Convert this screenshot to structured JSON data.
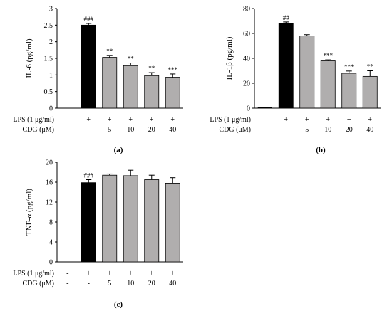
{
  "chart_data": [
    {
      "type": "bar",
      "panel_label": "(a)",
      "ylabel": "IL-6 (pg/ml)",
      "ylim": [
        0,
        3
      ],
      "yticks": [
        "0",
        "0.5",
        "1",
        "1.5",
        "2",
        "2.5",
        "3"
      ],
      "treatment_rows": [
        {
          "label": "LPS  (1 μg/ml)",
          "values": [
            "-",
            "+",
            "+",
            "+",
            "+",
            "+"
          ]
        },
        {
          "label": "CDG (μM)",
          "values": [
            "-",
            "-",
            "5",
            "10",
            "20",
            "40"
          ]
        }
      ],
      "values": [
        0.0,
        2.5,
        1.53,
        1.28,
        0.98,
        0.93
      ],
      "errors": [
        0.0,
        0.05,
        0.06,
        0.08,
        0.09,
        0.1
      ],
      "significance": [
        "",
        "###",
        "**",
        "**",
        "**",
        "***"
      ],
      "bar_colors": [
        "#000000",
        "#000000",
        "#b0aeae",
        "#b0aeae",
        "#b0aeae",
        "#b0aeae"
      ]
    },
    {
      "type": "bar",
      "panel_label": "(b)",
      "ylabel": "IL-1β (pg/ml)",
      "ylim": [
        0,
        80
      ],
      "yticks": [
        "0",
        "20",
        "40",
        "60",
        "80"
      ],
      "treatment_rows": [
        {
          "label": "LPS  (1 μg/ml)",
          "values": [
            "-",
            "+",
            "+",
            "+",
            "+",
            "+"
          ]
        },
        {
          "label": "CDG (μM)",
          "values": [
            "-",
            "-",
            "5",
            "10",
            "20",
            "40"
          ]
        }
      ],
      "values": [
        0.5,
        68.0,
        58.0,
        38.0,
        28.0,
        25.5
      ],
      "errors": [
        0.0,
        1.2,
        1.0,
        0.8,
        1.8,
        4.5
      ],
      "significance": [
        "",
        "##",
        "",
        "***",
        "***",
        "**"
      ],
      "bar_colors": [
        "#000000",
        "#000000",
        "#b0aeae",
        "#b0aeae",
        "#b0aeae",
        "#b0aeae"
      ]
    },
    {
      "type": "bar",
      "panel_label": "(c)",
      "ylabel": "TNF-α (pg/ml)",
      "ylim": [
        0,
        20
      ],
      "yticks": [
        "0",
        "4",
        "8",
        "12",
        "16",
        "20"
      ],
      "treatment_rows": [
        {
          "label": "LPS  (1 μg/ml)",
          "values": [
            "-",
            "+",
            "+",
            "+",
            "+",
            "+"
          ]
        },
        {
          "label": "CDG (μM)",
          "values": [
            "-",
            "-",
            "5",
            "10",
            "20",
            "40"
          ]
        }
      ],
      "values": [
        0.0,
        15.9,
        17.4,
        17.3,
        16.5,
        15.8
      ],
      "errors": [
        0.0,
        0.6,
        0.25,
        1.1,
        0.9,
        1.1
      ],
      "significance": [
        "",
        "###",
        "",
        "",
        "",
        ""
      ],
      "bar_colors": [
        "#000000",
        "#000000",
        "#b0aeae",
        "#b0aeae",
        "#b0aeae",
        "#b0aeae"
      ]
    }
  ]
}
